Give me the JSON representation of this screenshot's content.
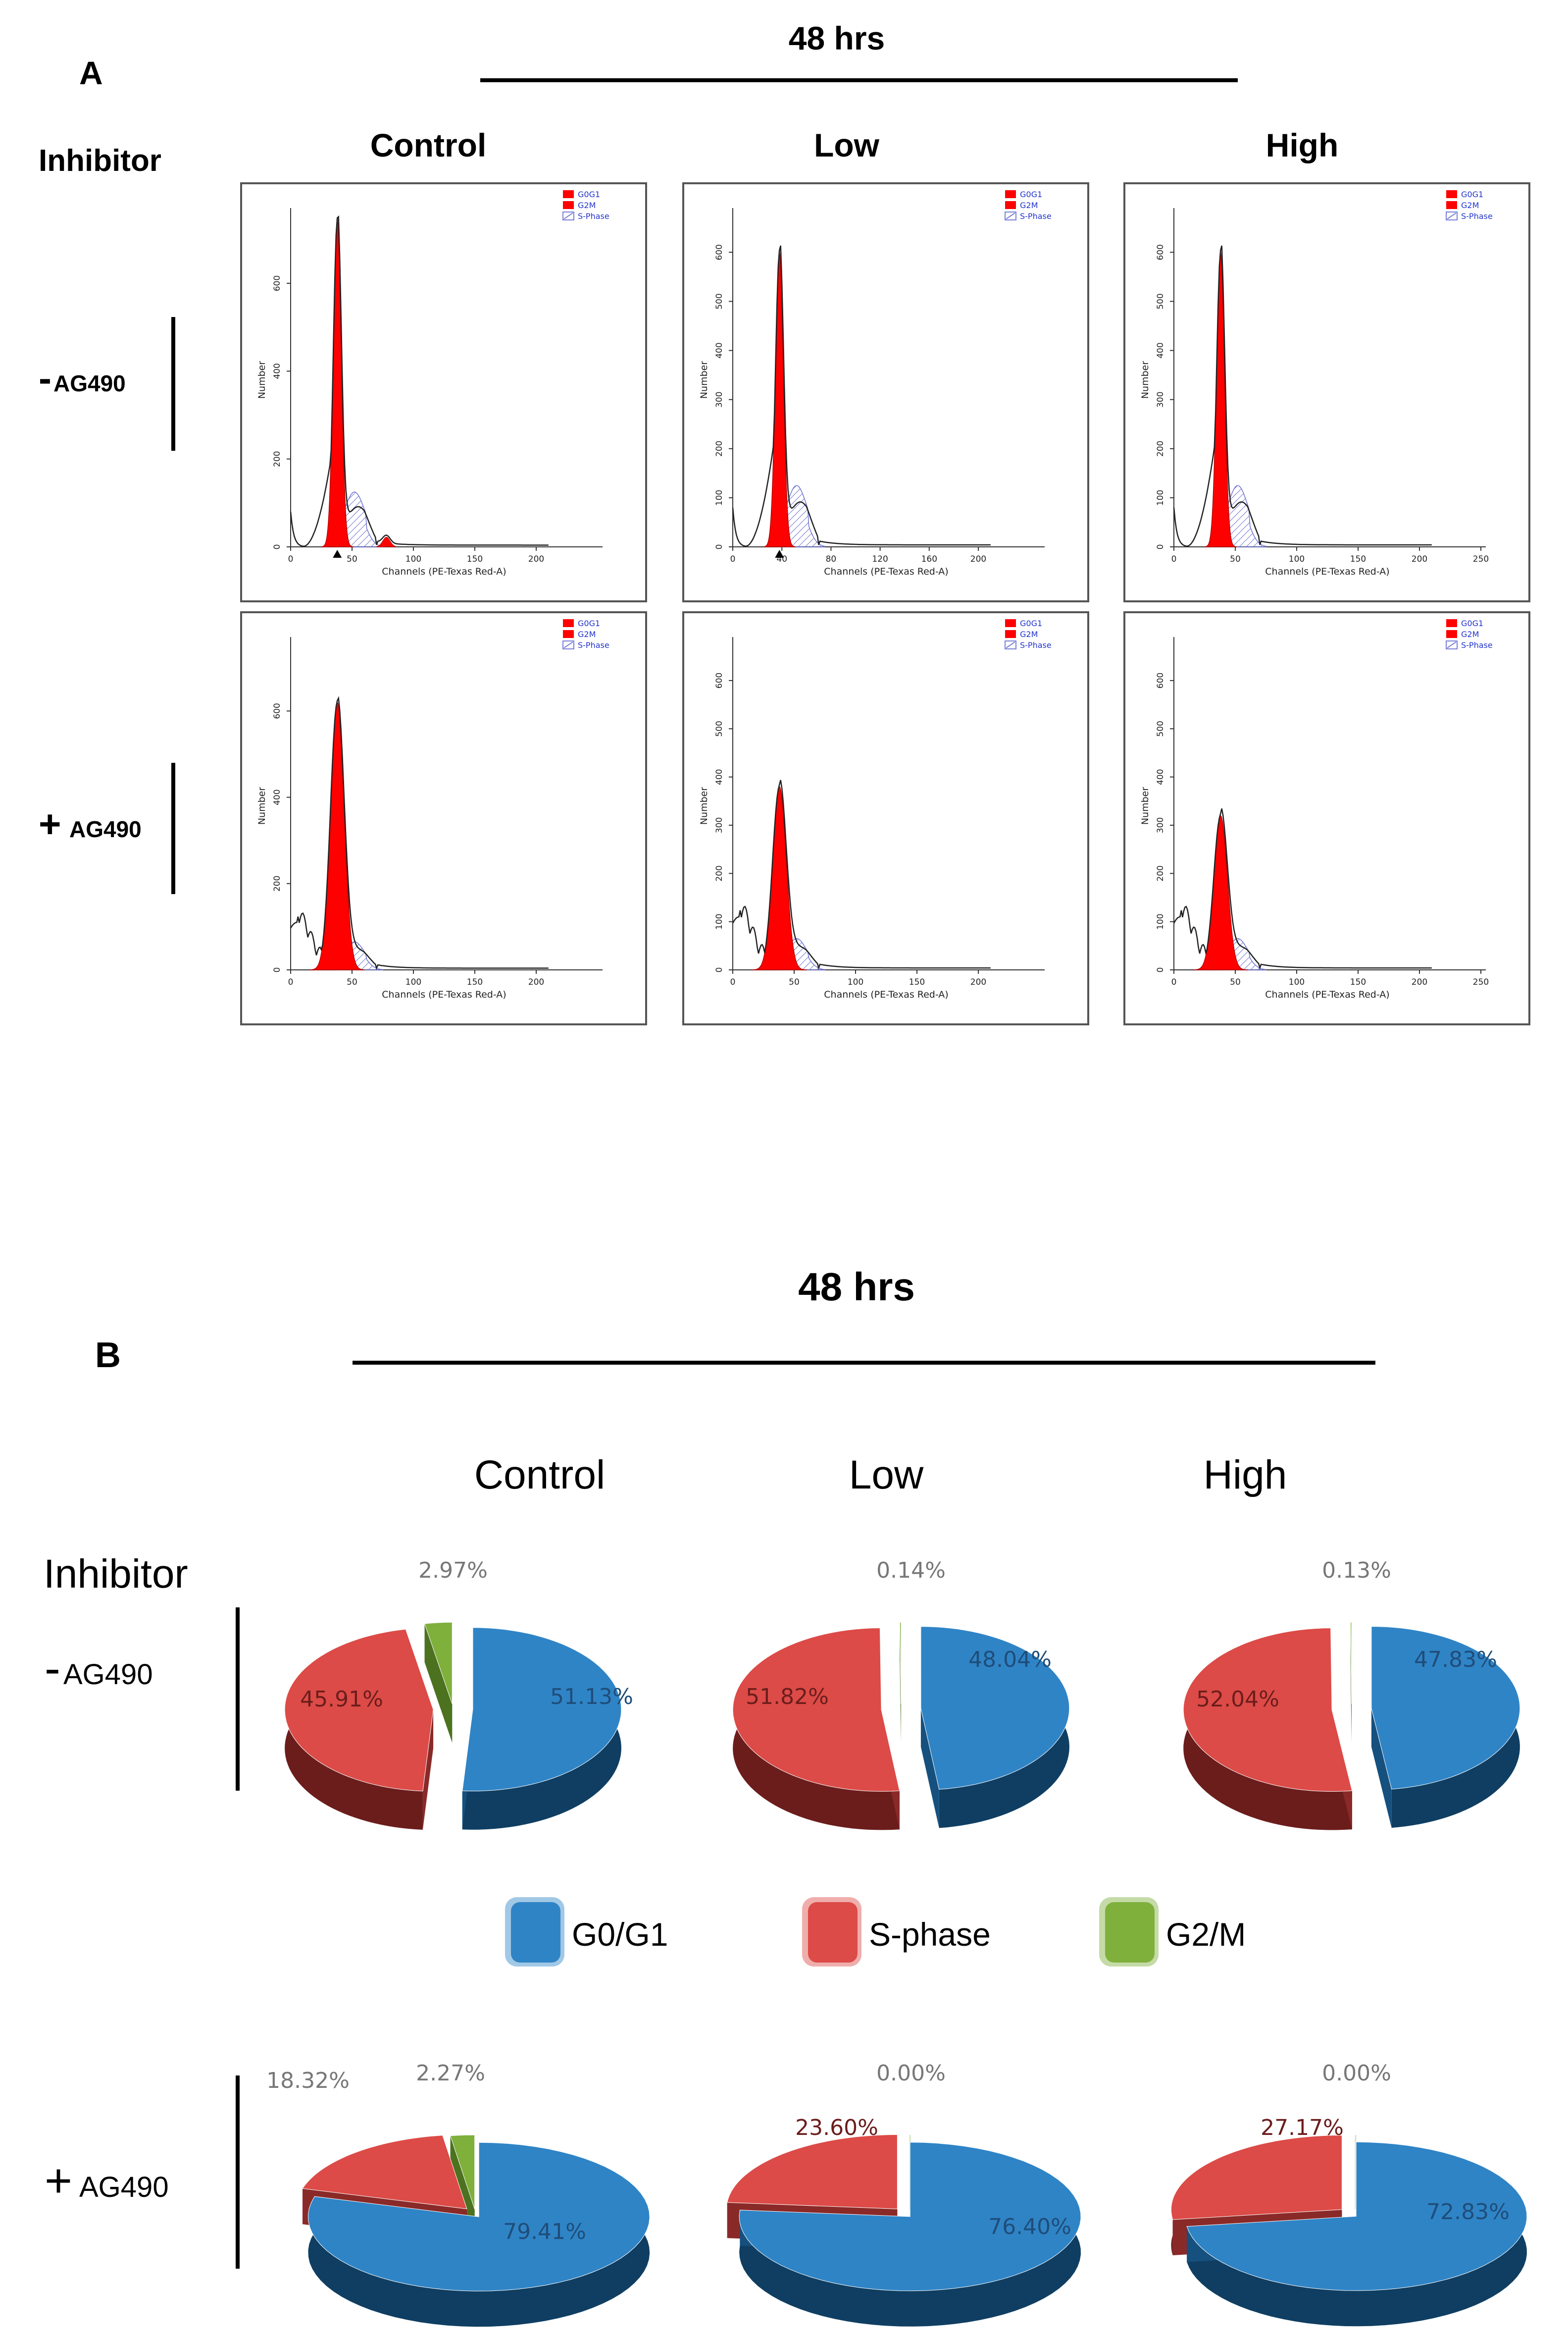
{
  "chart_data": {
    "panel_a": {
      "panel_label": "A",
      "time_label": "48 hrs",
      "row_header": "Inhibitor",
      "columns": [
        "Control",
        "Low",
        "High"
      ],
      "rows": [
        {
          "sign": "-",
          "label": "AG490"
        },
        {
          "sign": "+",
          "label": "AG490"
        }
      ],
      "type": "histogram",
      "x_label": "Channels (PE-Texas Red-A)",
      "y_label": "Number",
      "legend": [
        {
          "name": "G0G1",
          "color": "#ff0000"
        },
        {
          "name": "G2M",
          "color": "#ff0000"
        },
        {
          "name": "S-Phase",
          "color": "#7a7fd6"
        }
      ],
      "histograms": [
        {
          "row": 0,
          "col": 0,
          "xmax": 250,
          "xticks": [
            0,
            50,
            100,
            150,
            200
          ],
          "ymax": 760,
          "yticks": [
            0,
            200,
            400,
            600
          ],
          "g1_peak": 38,
          "g1_height": 745,
          "markers": [
            38
          ]
        },
        {
          "row": 0,
          "col": 1,
          "xmax": 250,
          "xticks": [
            0,
            40,
            80,
            120,
            160,
            200
          ],
          "ymax": 680,
          "yticks": [
            0,
            100,
            200,
            300,
            400,
            500,
            600
          ],
          "g1_peak": 38,
          "g1_height": 600,
          "markers": [
            38
          ]
        },
        {
          "row": 0,
          "col": 2,
          "xmax": 250,
          "xticks": [
            0,
            50,
            100,
            150,
            200,
            250
          ],
          "ymax": 680,
          "yticks": [
            0,
            100,
            200,
            300,
            400,
            500,
            600
          ],
          "g1_peak": 38,
          "g1_height": 600,
          "markers": []
        },
        {
          "row": 1,
          "col": 0,
          "xmax": 250,
          "xticks": [
            0,
            50,
            100,
            150,
            200
          ],
          "ymax": 760,
          "yticks": [
            0,
            200,
            400,
            600
          ],
          "g1_peak": 38,
          "g1_height": 620,
          "markers": []
        },
        {
          "row": 1,
          "col": 1,
          "xmax": 250,
          "xticks": [
            0,
            50,
            100,
            150,
            200
          ],
          "ymax": 680,
          "yticks": [
            0,
            100,
            200,
            300,
            400,
            500,
            600
          ],
          "g1_peak": 38,
          "g1_height": 380,
          "markers": []
        },
        {
          "row": 1,
          "col": 2,
          "xmax": 250,
          "xticks": [
            0,
            50,
            100,
            150,
            200,
            250
          ],
          "ymax": 680,
          "yticks": [
            0,
            100,
            200,
            300,
            400,
            500,
            600
          ],
          "g1_peak": 38,
          "g1_height": 320,
          "markers": []
        }
      ]
    },
    "panel_b": {
      "panel_label": "B",
      "time_label": "48 hrs",
      "row_header": "Inhibitor",
      "columns": [
        "Control",
        "Low",
        "High"
      ],
      "rows": [
        {
          "sign": "-",
          "label": "AG490"
        },
        {
          "sign": "+",
          "label": "AG490"
        }
      ],
      "type": "pie",
      "legend": [
        {
          "name": "G0/G1",
          "color": "#2f84c6"
        },
        {
          "name": "S-phase",
          "color": "#dc4b47"
        },
        {
          "name": "G2/M",
          "color": "#7fb03c"
        }
      ],
      "pies": [
        {
          "row": 0,
          "col": 0,
          "values": {
            "G0/G1": 51.13,
            "S-phase": 45.91,
            "G2/M": 2.97
          },
          "labels": [
            "51.13%",
            "45.91%",
            "2.97%"
          ]
        },
        {
          "row": 0,
          "col": 1,
          "values": {
            "G0/G1": 48.04,
            "S-phase": 51.82,
            "G2/M": 0.14
          },
          "labels": [
            "48.04%",
            "51.82%",
            "0.14%"
          ]
        },
        {
          "row": 0,
          "col": 2,
          "values": {
            "G0/G1": 47.83,
            "S-phase": 52.04,
            "G2/M": 0.13
          },
          "labels": [
            "47.83%",
            "52.04%",
            "0.13%"
          ]
        },
        {
          "row": 1,
          "col": 0,
          "values": {
            "G0/G1": 79.41,
            "S-phase": 18.32,
            "G2/M": 2.27
          },
          "labels": [
            "79.41%",
            "18.32%",
            "2.27%"
          ]
        },
        {
          "row": 1,
          "col": 1,
          "values": {
            "G0/G1": 76.4,
            "S-phase": 23.6,
            "G2/M": 0.0
          },
          "labels": [
            "76.40%",
            "23.60%",
            "0.00%"
          ]
        },
        {
          "row": 1,
          "col": 2,
          "values": {
            "G0/G1": 72.83,
            "S-phase": 27.17,
            "G2/M": 0.0
          },
          "labels": [
            "72.83%",
            "27.17%",
            "0.00%"
          ]
        }
      ]
    }
  }
}
